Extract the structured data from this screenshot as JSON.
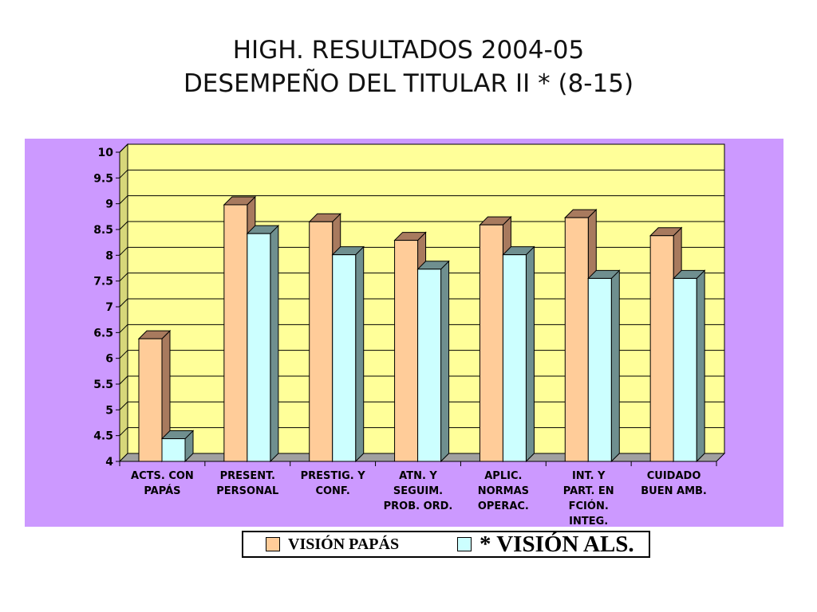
{
  "title_line1": "HIGH. RESULTADOS 2004-05",
  "title_line2": "DESEMPEÑO DEL TITULAR II * (8-15)",
  "colors": {
    "panel": "#cc99ff",
    "plot_area": "#ffff99",
    "series1": "#ffcc99",
    "series1_side": "#a87a5e",
    "series2": "#ccffff",
    "series2_side": "#6f8f8f"
  },
  "chart_data": {
    "type": "bar",
    "categories": [
      [
        "ACTS. CON",
        "PAPÁS"
      ],
      [
        "PRESENT.",
        "PERSONAL"
      ],
      [
        "PRESTIG. Y",
        "CONF."
      ],
      [
        "ATN. Y",
        "SEGUIM.",
        "PROB. ORD."
      ],
      [
        "APLIC.",
        "NORMAS",
        "OPERAC."
      ],
      [
        "INT. Y",
        "PART. EN",
        "FCIÓN.",
        "INTEG."
      ],
      [
        "CUIDADO",
        "BUEN AMB."
      ]
    ],
    "series": [
      {
        "name": "VISIÓN PAPÁS",
        "values": [
          6.38,
          8.98,
          8.65,
          8.29,
          8.59,
          8.73,
          8.38
        ]
      },
      {
        "name": "* VISIÓN ALS.",
        "values": [
          4.44,
          8.42,
          8.01,
          7.73,
          8.01,
          7.55,
          7.55
        ]
      }
    ],
    "ylim": [
      4,
      10
    ],
    "yticks": [
      "4",
      "4.5",
      "5",
      "5.5",
      "6",
      "6.5",
      "7",
      "7.5",
      "8",
      "8.5",
      "9",
      "9.5",
      "10"
    ],
    "grid": true,
    "legend_position": "bottom"
  }
}
